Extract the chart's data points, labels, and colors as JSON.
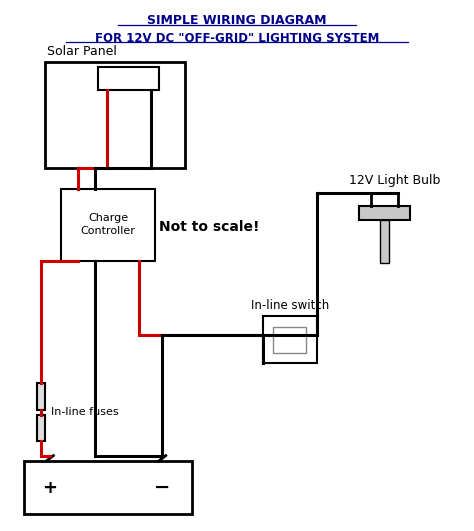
{
  "title_line1": "SIMPLE WIRING DIAGRAM",
  "title_line2": "FOR 12V DC \"OFF-GRID\" LIGHTING SYSTEM",
  "title_color": "#00008B",
  "bg_color": "#ffffff",
  "label_solar": "Solar Panel",
  "label_charge": "Charge\nController",
  "label_fuses": "In-line fuses",
  "label_switch": "In-line switch",
  "label_bulb": "12V Light Bulb",
  "label_not_to_scale": "Not to scale!",
  "label_plus": "+",
  "label_minus": "−",
  "wire_red": "#cc0000",
  "wire_black": "#000000"
}
